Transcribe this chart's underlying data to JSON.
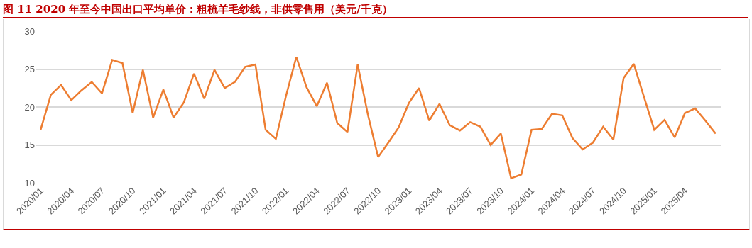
{
  "chart_data": {
    "type": "line",
    "title": "图 11  2020 年至今中国出口平均单价：粗梳羊毛纱线，非供零售用（美元/千克）",
    "categories": [
      "2020/01",
      null,
      null,
      "2020/04",
      null,
      null,
      "2020/07",
      null,
      null,
      "2020/10",
      null,
      null,
      "2021/01",
      null,
      null,
      "2021/04",
      null,
      null,
      "2021/07",
      null,
      null,
      "2021/10",
      null,
      null,
      "2022/01",
      null,
      null,
      "2022/04",
      null,
      null,
      "2022/07",
      null,
      null,
      "2022/10",
      null,
      null,
      "2023/01",
      null,
      null,
      "2023/04",
      null,
      null,
      "2023/07",
      null,
      null,
      "2023/10",
      null,
      null,
      "2024/01",
      null,
      null,
      "2024/04",
      null,
      null,
      "2024/07",
      null,
      null,
      "2024/10",
      null,
      null,
      "2025/01",
      null,
      null,
      "2025/04",
      null,
      null,
      null
    ],
    "series": [
      {
        "color": "#ed7d31",
        "values": [
          17.0,
          21.6,
          22.9,
          20.9,
          22.2,
          23.3,
          21.8,
          26.2,
          25.8,
          19.2,
          24.9,
          18.6,
          22.3,
          18.6,
          20.6,
          24.4,
          21.1,
          24.9,
          22.5,
          23.3,
          25.3,
          25.6,
          17.0,
          15.8,
          21.5,
          26.6,
          22.6,
          20.1,
          23.2,
          17.9,
          16.7,
          25.6,
          19.0,
          13.4,
          15.3,
          17.3,
          20.5,
          22.5,
          18.2,
          20.4,
          17.6,
          16.9,
          18.0,
          17.4,
          15.0,
          16.5,
          10.6,
          11.1,
          17.0,
          17.1,
          19.1,
          18.9,
          15.9,
          14.4,
          15.3,
          17.4,
          15.7,
          23.8,
          25.7,
          21.3,
          17.0,
          18.3,
          16.0,
          19.2,
          19.8,
          18.2,
          16.5
        ]
      }
    ],
    "ylim": [
      10,
      30
    ],
    "yticks": [
      10,
      15,
      20,
      25,
      30
    ],
    "grid": "y",
    "marker": "none",
    "line_style": "solid"
  }
}
